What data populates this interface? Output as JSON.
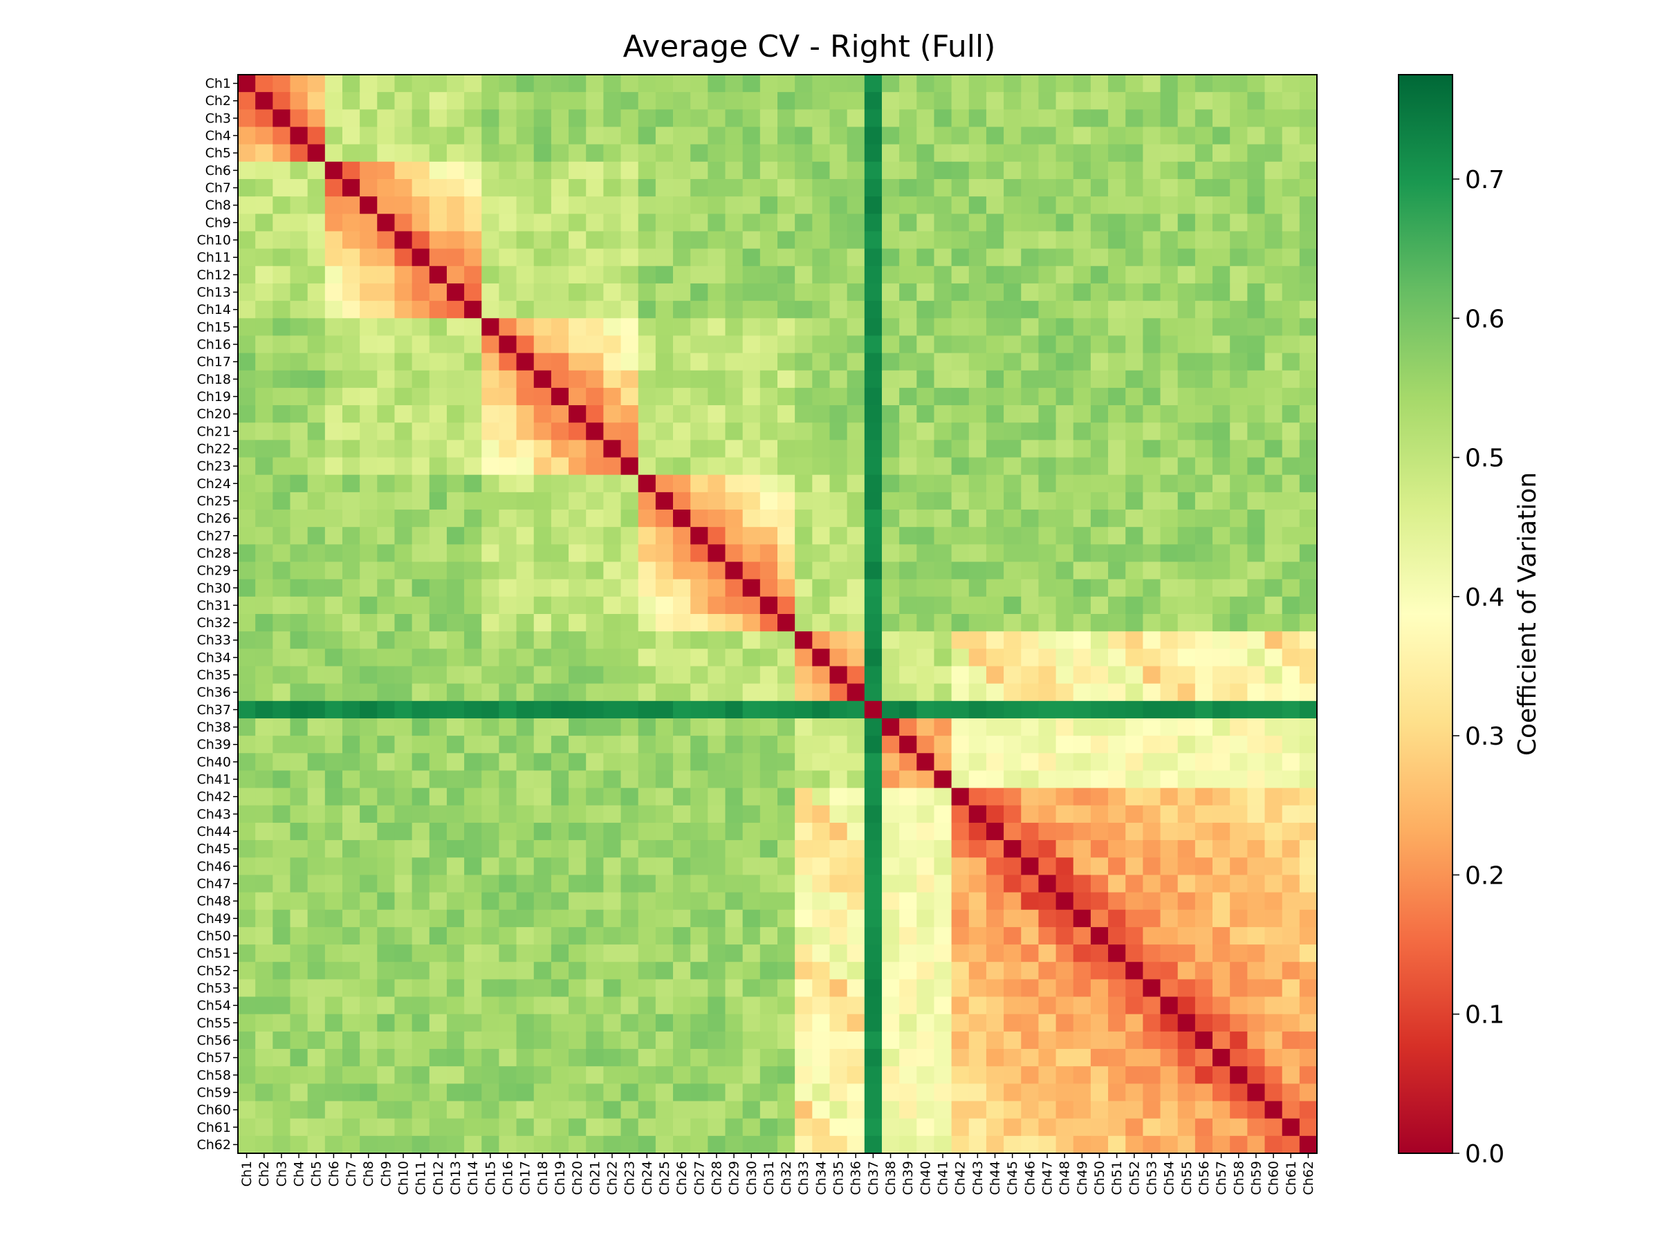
{
  "chart_data": {
    "type": "heatmap",
    "title": "Average CV - Right (Full)",
    "xlabel": "",
    "ylabel": "",
    "labels": [
      "Ch1",
      "Ch2",
      "Ch3",
      "Ch4",
      "Ch5",
      "Ch6",
      "Ch7",
      "Ch8",
      "Ch9",
      "Ch10",
      "Ch11",
      "Ch12",
      "Ch13",
      "Ch14",
      "Ch15",
      "Ch16",
      "Ch17",
      "Ch18",
      "Ch19",
      "Ch20",
      "Ch21",
      "Ch22",
      "Ch23",
      "Ch24",
      "Ch25",
      "Ch26",
      "Ch27",
      "Ch28",
      "Ch29",
      "Ch30",
      "Ch31",
      "Ch32",
      "Ch33",
      "Ch34",
      "Ch35",
      "Ch36",
      "Ch37",
      "Ch38",
      "Ch39",
      "Ch40",
      "Ch41",
      "Ch42",
      "Ch43",
      "Ch44",
      "Ch45",
      "Ch46",
      "Ch47",
      "Ch48",
      "Ch49",
      "Ch50",
      "Ch51",
      "Ch52",
      "Ch53",
      "Ch54",
      "Ch55",
      "Ch56",
      "Ch57",
      "Ch58",
      "Ch59",
      "Ch60",
      "Ch61",
      "Ch62"
    ],
    "colormap": "RdYlGn",
    "vmin": 0.0,
    "vmax": 0.775,
    "colorbar": {
      "label": "Coefficient of Variation",
      "ticks": [
        0.0,
        0.1,
        0.2,
        0.3,
        0.4,
        0.5,
        0.6,
        0.7
      ],
      "tick_labels": [
        "0.0",
        "0.1",
        "0.2",
        "0.3",
        "0.4",
        "0.5",
        "0.6",
        "0.7"
      ]
    },
    "diagonal_value": 0.0,
    "block_structure": {
      "groups": [
        [
          1,
          5
        ],
        [
          6,
          14
        ],
        [
          15,
          23
        ],
        [
          24,
          32
        ],
        [
          33,
          37
        ],
        [
          38,
          41
        ],
        [
          42,
          50
        ],
        [
          51,
          62
        ]
      ],
      "note_values": {
        "within_block_near_diagonal": 0.15,
        "early_cross_block": 0.55,
        "ch37_row_and_column": 0.72,
        "late_region_ch42_to_ch62": 0.2
      }
    },
    "grid": false,
    "legend": "colorbar-right"
  }
}
